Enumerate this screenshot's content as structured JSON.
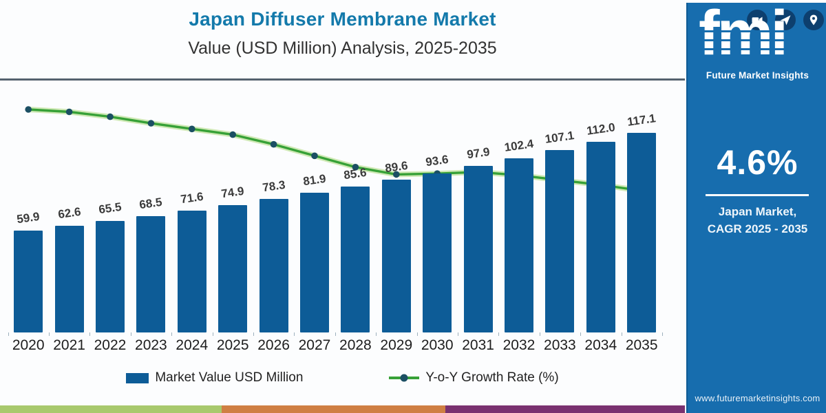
{
  "header": {
    "title": "Japan Diffuser Membrane Market",
    "subtitle": "Value (USD Million) Analysis, 2025-2035"
  },
  "chart_data": {
    "type": "bar",
    "title": "Japan Diffuser Membrane Market Value (USD Million) Analysis, 2025-2035",
    "categories": [
      "2020",
      "2021",
      "2022",
      "2023",
      "2024",
      "2025",
      "2026",
      "2027",
      "2028",
      "2029",
      "2030",
      "2031",
      "2032",
      "2033",
      "2034",
      "2035"
    ],
    "series": [
      {
        "name": "Market Value USD Million",
        "type": "bar",
        "values": [
          59.9,
          62.6,
          65.5,
          68.5,
          71.6,
          74.9,
          78.3,
          81.9,
          85.6,
          89.6,
          93.6,
          97.9,
          102.4,
          107.1,
          112.0,
          117.1
        ]
      },
      {
        "name": "Y-o-Y Growth Rate (%)",
        "type": "line",
        "axis_hidden": true,
        "axis_range_assumed": [
          4.0,
          5.0
        ],
        "values_estimated": [
          5.0,
          4.97,
          4.91,
          4.83,
          4.76,
          4.69,
          4.57,
          4.43,
          4.29,
          4.2,
          4.21,
          4.23,
          4.19,
          4.13,
          4.07,
          4.0
        ]
      }
    ],
    "ylim": [
      0,
      148
    ],
    "grid": false,
    "data_labels": true,
    "legend_position": "bottom"
  },
  "legend": {
    "bar_label": "Market Value USD Million",
    "line_label": "Y-o-Y Growth Rate (%)"
  },
  "colors": {
    "bar": "#0d5c97",
    "line": "#37a137",
    "line_glow": "#a9d878",
    "marker": "#1b4f63",
    "title": "#147aab",
    "sidebar_bg": "#176dae",
    "stripe": [
      "#a8c96d",
      "#cf7f43",
      "#7a3170"
    ]
  },
  "sidebar": {
    "logo_text": "fmi",
    "logo_subtext": "Future Market Insights",
    "stat_value": "4.6%",
    "stat_caption_line1": "Japan Market,",
    "stat_caption_line2": "CAGR 2025 - 2035",
    "website": "www.futuremarketinsights.com"
  }
}
